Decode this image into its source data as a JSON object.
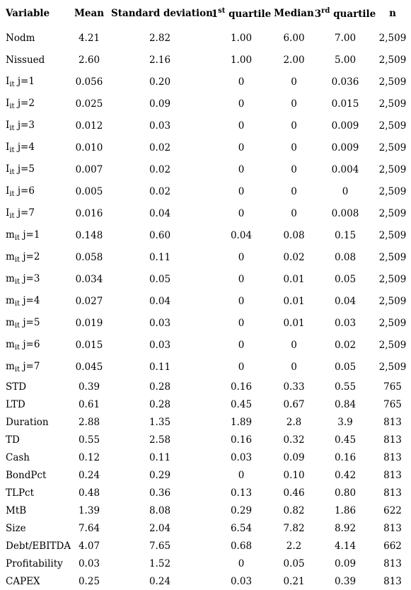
{
  "table": {
    "headers": [
      {
        "text": "Variable"
      },
      {
        "text": "Mean"
      },
      {
        "text": "Standard deviation"
      },
      {
        "text": "1",
        "sup": "st",
        "tail": " quartile"
      },
      {
        "text": "Median"
      },
      {
        "text": "3",
        "sup": "rd",
        "tail": " quartile"
      },
      {
        "text": "n"
      }
    ],
    "rows": [
      {
        "var": "Nodm",
        "cells": [
          "4.21",
          "2.82",
          "1.00",
          "6.00",
          "7.00",
          "2,509"
        ]
      },
      {
        "var": "Nissued",
        "cells": [
          "2.60",
          "2.16",
          "1.00",
          "2.00",
          "5.00",
          "2,509"
        ]
      },
      {
        "var": "I",
        "sub": "it",
        "tail": " j=1",
        "cells": [
          "0.056",
          "0.20",
          "0",
          "0",
          "0.036",
          "2,509"
        ]
      },
      {
        "var": "I",
        "sub": "it",
        "tail": " j=2",
        "cells": [
          "0.025",
          "0.09",
          "0",
          "0",
          "0.015",
          "2,509"
        ]
      },
      {
        "var": "I",
        "sub": "it",
        "tail": " j=3",
        "cells": [
          "0.012",
          "0.03",
          "0",
          "0",
          "0.009",
          "2,509"
        ]
      },
      {
        "var": "I",
        "sub": "it",
        "tail": " j=4",
        "cells": [
          "0.010",
          "0.02",
          "0",
          "0",
          "0.009",
          "2,509"
        ]
      },
      {
        "var": "I",
        "sub": "it",
        "tail": " j=5",
        "cells": [
          "0.007",
          "0.02",
          "0",
          "0",
          "0.004",
          "2,509"
        ]
      },
      {
        "var": "I",
        "sub": "it",
        "tail": " j=6",
        "cells": [
          "0.005",
          "0.02",
          "0",
          "0",
          "0",
          "2,509"
        ]
      },
      {
        "var": "I",
        "sub": "it",
        "tail": " j=7",
        "cells": [
          "0.016",
          "0.04",
          "0",
          "0",
          "0.008",
          "2,509"
        ]
      },
      {
        "var": "m",
        "sub": "it",
        "tail": " j=1",
        "cells": [
          "0.148",
          "0.60",
          "0.04",
          "0.08",
          "0.15",
          "2,509"
        ]
      },
      {
        "var": "m",
        "sub": "it",
        "tail": " j=2",
        "cells": [
          "0.058",
          "0.11",
          "0",
          "0.02",
          "0.08",
          "2,509"
        ]
      },
      {
        "var": "m",
        "sub": "it",
        "tail": " j=3",
        "cells": [
          "0.034",
          "0.05",
          "0",
          "0.01",
          "0.05",
          "2,509"
        ]
      },
      {
        "var": "m",
        "sub": "it",
        "tail": " j=4",
        "cells": [
          "0.027",
          "0.04",
          "0",
          "0.01",
          "0.04",
          "2,509"
        ]
      },
      {
        "var": "m",
        "sub": "it",
        "tail": " j=5",
        "cells": [
          "0.019",
          "0.03",
          "0",
          "0.01",
          "0.03",
          "2,509"
        ]
      },
      {
        "var": "m",
        "sub": "it",
        "tail": " j=6",
        "cells": [
          "0.015",
          "0.03",
          "0",
          "0",
          "0.02",
          "2,509"
        ]
      },
      {
        "var": "m",
        "sub": "it",
        "tail": " j=7",
        "cells": [
          "0.045",
          "0.11",
          "0",
          "0",
          "0.05",
          "2,509"
        ]
      },
      {
        "var": "STD",
        "cells": [
          "0.39",
          "0.28",
          "0.16",
          "0.33",
          "0.55",
          "765"
        ]
      },
      {
        "var": "LTD",
        "cells": [
          "0.61",
          "0.28",
          "0.45",
          "0.67",
          "0.84",
          "765"
        ]
      },
      {
        "var": "Duration",
        "cells": [
          "2.88",
          "1.35",
          "1.89",
          "2.8",
          "3.9",
          "813"
        ]
      },
      {
        "var": "TD",
        "cells": [
          "0.55",
          "2.58",
          "0.16",
          "0.32",
          "0.45",
          "813"
        ]
      },
      {
        "var": "Cash",
        "cells": [
          "0.12",
          "0.11",
          "0.03",
          "0.09",
          "0.16",
          "813"
        ]
      },
      {
        "var": "BondPct",
        "cells": [
          "0.24",
          "0.29",
          "0",
          "0.10",
          "0.42",
          "813"
        ]
      },
      {
        "var": "TLPct",
        "cells": [
          "0.48",
          "0.36",
          "0.13",
          "0.46",
          "0.80",
          "813"
        ]
      },
      {
        "var": "MtB",
        "cells": [
          "1.39",
          "8.08",
          "0.29",
          "0.82",
          "1.86",
          "622"
        ]
      },
      {
        "var": "Size",
        "cells": [
          "7.64",
          "2.04",
          "6.54",
          "7.82",
          "8.92",
          "813"
        ]
      },
      {
        "var": "Debt/EBITDA",
        "cells": [
          "4.07",
          "7.65",
          "0.68",
          "2.2",
          "4.14",
          "662"
        ]
      },
      {
        "var": "Profitability",
        "cells": [
          "0.03",
          "1.52",
          "0",
          "0.05",
          "0.09",
          "813"
        ]
      },
      {
        "var": "CAPEX",
        "cells": [
          "0.25",
          "0.24",
          "0.03",
          "0.21",
          "0.39",
          "813"
        ]
      }
    ]
  }
}
